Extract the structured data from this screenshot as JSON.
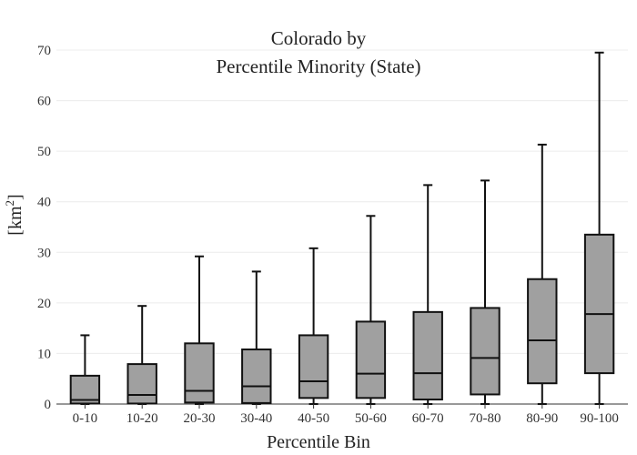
{
  "chart_data": {
    "type": "box",
    "title_lines": [
      "Colorado  by",
      "Percentile Minority (State)"
    ],
    "xlabel": "Percentile Bin",
    "ylabel": {
      "text": "[km",
      "superscript": "2",
      "suffix": "]"
    },
    "ylim": [
      0,
      70
    ],
    "yticks": [
      0,
      10,
      20,
      30,
      40,
      50,
      60,
      70
    ],
    "grid": true,
    "box_fill": "#a0a0a0",
    "stroke_color": "#111111",
    "categories": [
      "0-10",
      "10-20",
      "20-30",
      "30-40",
      "40-50",
      "50-60",
      "60-70",
      "70-80",
      "80-90",
      "90-100"
    ],
    "boxes": [
      {
        "min": 0,
        "q1": 0.1,
        "median": 0.8,
        "q3": 5.6,
        "max": 13.6
      },
      {
        "min": 0,
        "q1": 0.1,
        "median": 1.8,
        "q3": 7.9,
        "max": 19.4
      },
      {
        "min": 0,
        "q1": 0.3,
        "median": 2.6,
        "q3": 12.0,
        "max": 29.2
      },
      {
        "min": 0,
        "q1": 0.2,
        "median": 3.5,
        "q3": 10.8,
        "max": 26.2
      },
      {
        "min": 0,
        "q1": 1.2,
        "median": 4.5,
        "q3": 13.6,
        "max": 30.8
      },
      {
        "min": 0,
        "q1": 1.2,
        "median": 6.0,
        "q3": 16.3,
        "max": 37.2
      },
      {
        "min": 0,
        "q1": 0.9,
        "median": 6.1,
        "q3": 18.2,
        "max": 43.3
      },
      {
        "min": 0,
        "q1": 1.9,
        "median": 9.1,
        "q3": 19.0,
        "max": 44.2
      },
      {
        "min": 0,
        "q1": 4.1,
        "median": 12.6,
        "q3": 24.7,
        "max": 51.3
      },
      {
        "min": 0,
        "q1": 6.1,
        "median": 17.8,
        "q3": 33.5,
        "max": 69.5
      }
    ]
  }
}
